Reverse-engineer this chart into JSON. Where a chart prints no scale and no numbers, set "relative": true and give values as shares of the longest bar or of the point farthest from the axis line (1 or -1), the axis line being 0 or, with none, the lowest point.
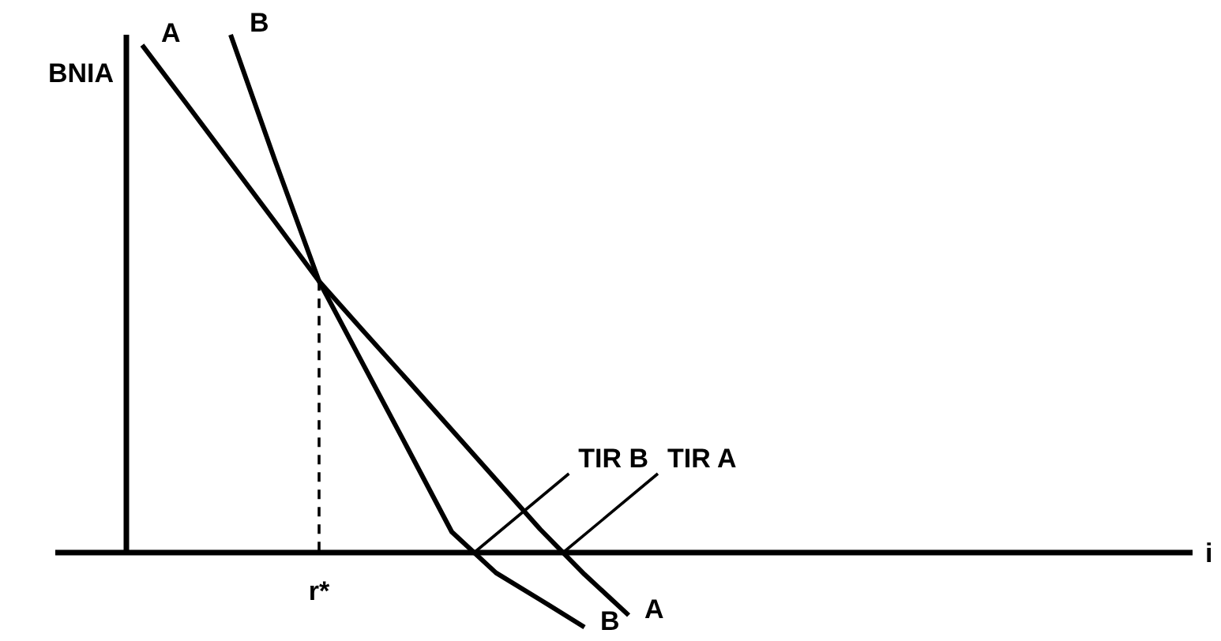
{
  "chart_data": {
    "type": "line",
    "relative": true,
    "ylabel": "BNIA",
    "marker": "none",
    "categories": [
      null,
      null,
      null,
      null,
      null,
      null,
      null,
      null,
      null,
      null,
      null,
      null
    ],
    "series": [
      {
        "name": "A",
        "color": "#000000",
        "values": [
          0.98,
          0.867,
          0.753,
          0.639,
          0.524,
          0.428,
          0.333,
          0.237,
          0.141,
          0.045,
          -0.042,
          -0.121
        ]
      },
      {
        "name": "B",
        "color": "#000000",
        "values": [
          null,
          null,
          1,
          0.758,
          0.524,
          0.363,
          0.202,
          0.04,
          -0.039,
          -0.091,
          -0.144,
          null
        ]
      }
    ],
    "annotations": [
      "r*",
      "TIR B",
      "TIR A",
      "i"
    ]
  }
}
